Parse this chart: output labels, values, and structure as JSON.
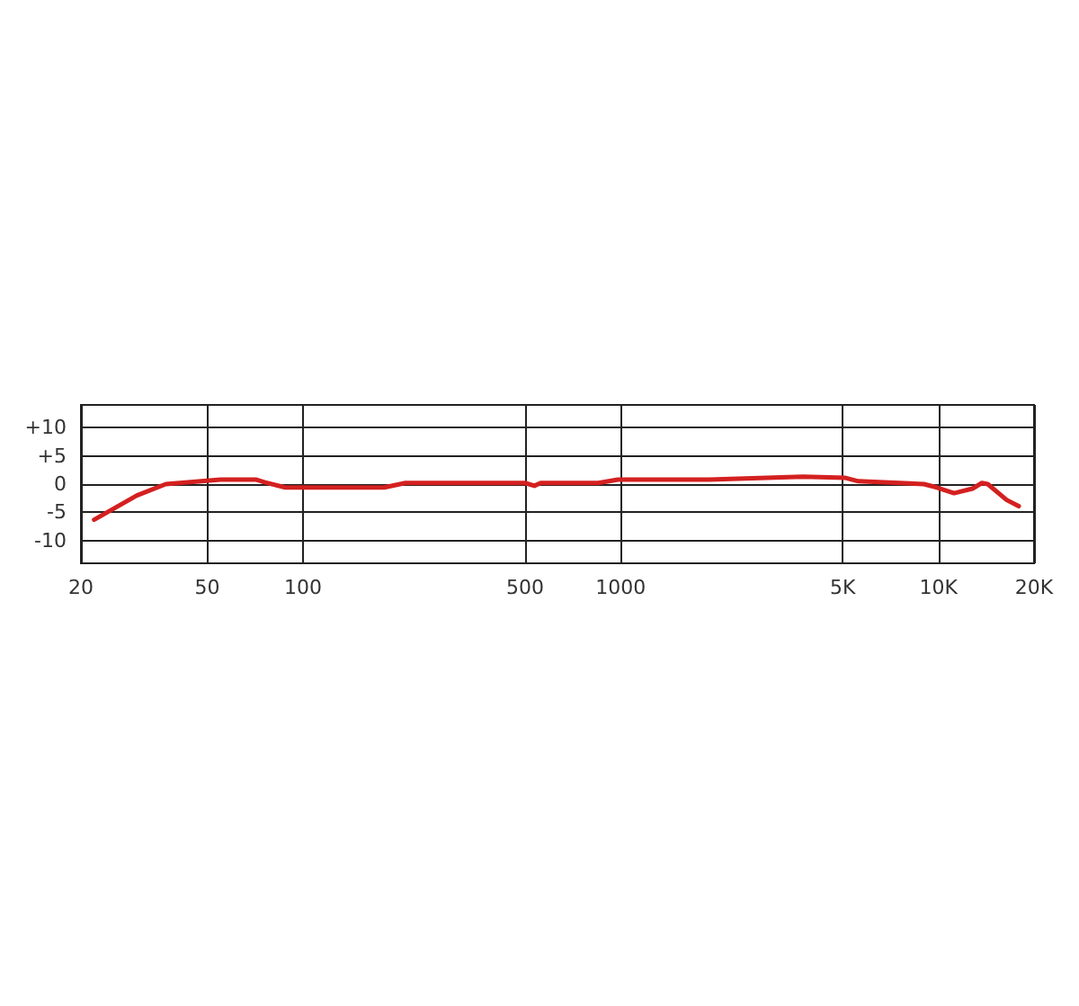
{
  "chart_data": {
    "type": "line",
    "log": "x",
    "xlim": [
      20,
      20000
    ],
    "ylim": [
      -14,
      14
    ],
    "xticks": [
      20,
      50,
      100,
      500,
      1000,
      {
        "value": 5000,
        "label": "5K"
      },
      {
        "value": 10000,
        "label": "10K"
      },
      {
        "value": 20000,
        "label": "20K"
      }
    ],
    "yticks": [
      {
        "value": 10,
        "label": "+10"
      },
      {
        "value": 5,
        "label": "+5"
      },
      0,
      -5,
      -10
    ],
    "grid": true,
    "marker": "none",
    "line_style": "solid",
    "series": [
      {
        "color": "#d42020",
        "x": [
          22,
          30,
          37,
          55,
          71,
          76,
          88,
          180,
          210,
          500,
          535,
          560,
          850,
          980,
          1900,
          3750,
          5100,
          5600,
          9000,
          9900,
          11200,
          12800,
          13700,
          14300,
          16400,
          17900
        ],
        "values": [
          -6.3,
          -2,
          0,
          0.8,
          0.8,
          0.3,
          -0.6,
          -0.6,
          0.2,
          0.2,
          -0.3,
          0.2,
          0.2,
          0.8,
          0.8,
          1.3,
          1.1,
          0.5,
          0,
          -0.6,
          -1.6,
          -0.8,
          0.2,
          0,
          -2.8,
          -3.9
        ]
      }
    ]
  }
}
